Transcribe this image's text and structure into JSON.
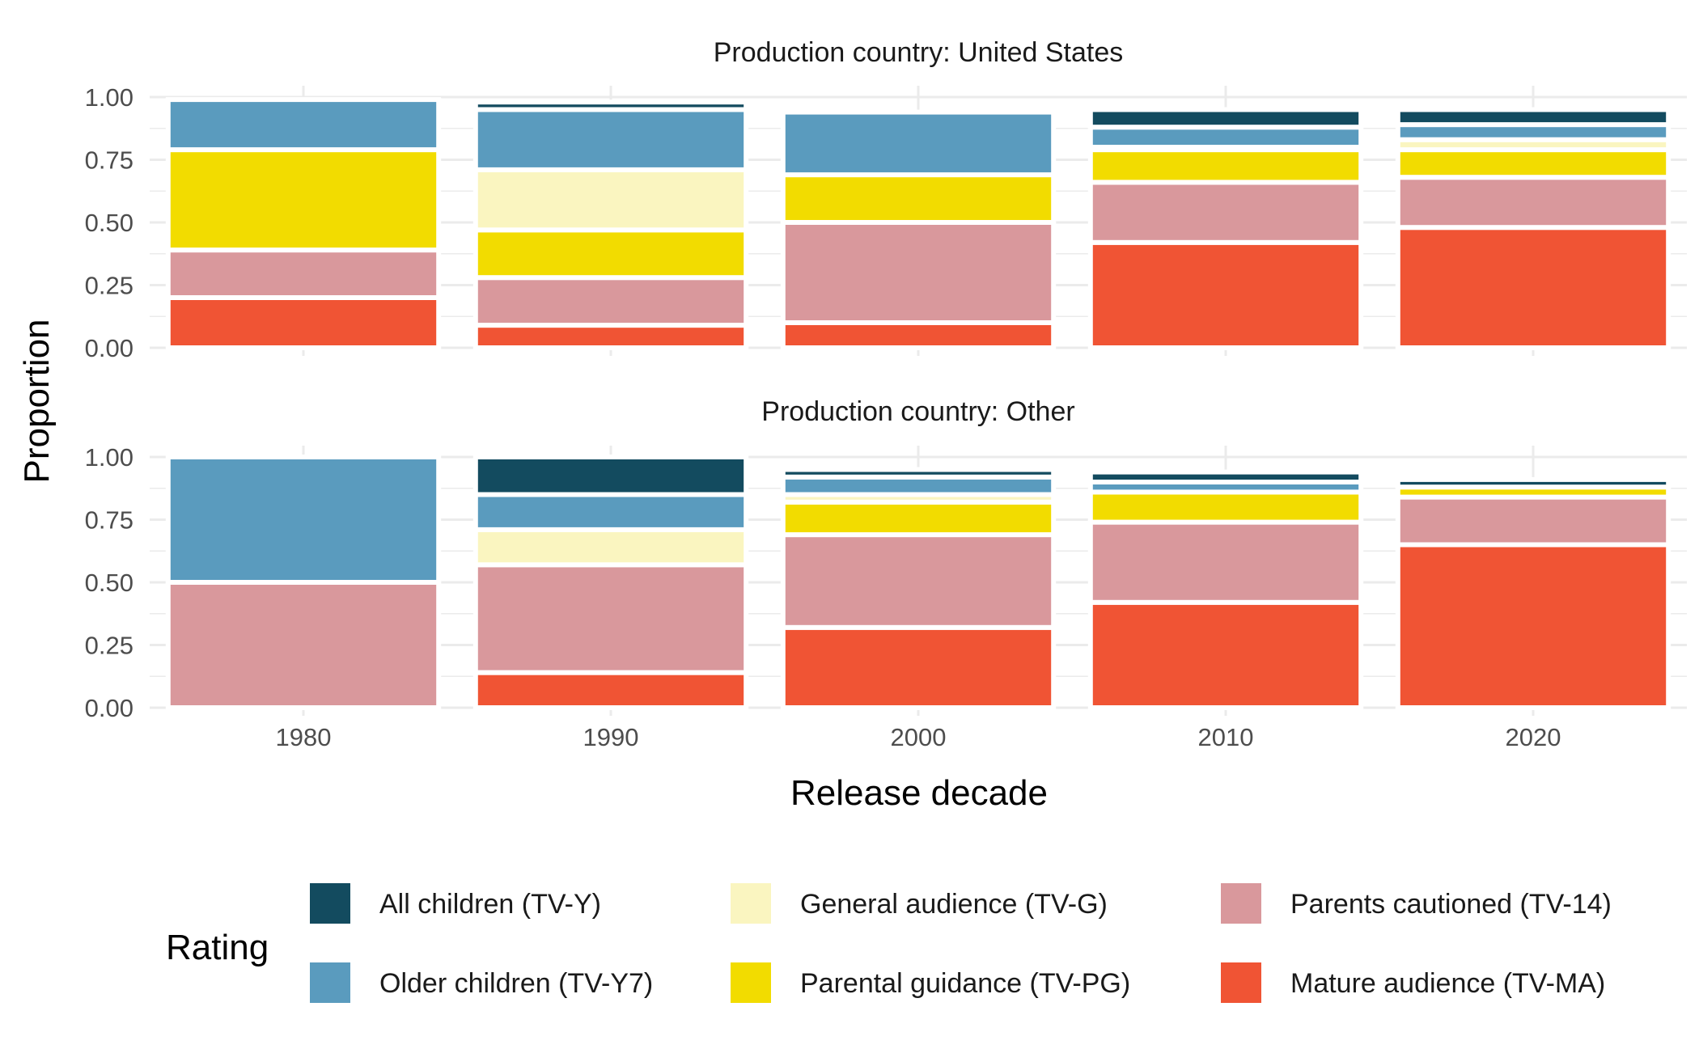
{
  "chart_data": {
    "type": "bar",
    "stacked": true,
    "xlabel": "Release decade",
    "ylabel": "Proportion",
    "ylim": [
      0,
      1
    ],
    "yticks": [
      "0.00",
      "0.25",
      "0.50",
      "0.75",
      "1.00"
    ],
    "categories": [
      "1980",
      "1990",
      "2000",
      "2010",
      "2020"
    ],
    "grid": true,
    "legend_title": "Rating",
    "legend_position": "bottom",
    "legend_order": [
      "TV-Y",
      "TV-Y7",
      "TV-G",
      "TV-PG",
      "TV-14",
      "TV-MA"
    ],
    "ratings": [
      {
        "key": "TV-Y",
        "label": "All children (TV-Y)",
        "color": "#134B5F"
      },
      {
        "key": "TV-Y7",
        "label": "Older children (TV-Y7)",
        "color": "#5A9BBE"
      },
      {
        "key": "TV-G",
        "label": "General audience (TV-G)",
        "color": "#FAF5C0"
      },
      {
        "key": "TV-PG",
        "label": "Parental guidance (TV-PG)",
        "color": "#F2DC00"
      },
      {
        "key": "TV-14",
        "label": "Parents cautioned (TV-14)",
        "color": "#D9989C"
      },
      {
        "key": "TV-MA",
        "label": "Mature audience (TV-MA)",
        "color": "#F05434"
      }
    ],
    "panels": [
      {
        "title": "Production country: United States",
        "series": [
          {
            "rating": "TV-MA",
            "values": [
              0.2,
              0.09,
              0.1,
              0.42,
              0.48
            ]
          },
          {
            "rating": "TV-14",
            "values": [
              0.19,
              0.19,
              0.4,
              0.24,
              0.2
            ]
          },
          {
            "rating": "TV-PG",
            "values": [
              0.4,
              0.19,
              0.19,
              0.13,
              0.11
            ]
          },
          {
            "rating": "TV-G",
            "values": [
              0.0,
              0.24,
              0.0,
              0.01,
              0.04
            ]
          },
          {
            "rating": "TV-Y7",
            "values": [
              0.2,
              0.24,
              0.25,
              0.08,
              0.06
            ]
          },
          {
            "rating": "TV-Y",
            "values": [
              0.0,
              0.03,
              0.0,
              0.07,
              0.06
            ]
          }
        ]
      },
      {
        "title": "Production country: Other",
        "series": [
          {
            "rating": "TV-MA",
            "values": [
              0.0,
              0.14,
              0.32,
              0.42,
              0.65
            ]
          },
          {
            "rating": "TV-14",
            "values": [
              0.5,
              0.43,
              0.37,
              0.32,
              0.19
            ]
          },
          {
            "rating": "TV-PG",
            "values": [
              0.0,
              0.0,
              0.13,
              0.12,
              0.04
            ]
          },
          {
            "rating": "TV-G",
            "values": [
              0.0,
              0.14,
              0.03,
              0.0,
              0.0
            ]
          },
          {
            "rating": "TV-Y7",
            "values": [
              0.5,
              0.14,
              0.07,
              0.04,
              0.0
            ]
          },
          {
            "rating": "TV-Y",
            "values": [
              0.0,
              0.15,
              0.03,
              0.04,
              0.03
            ]
          }
        ]
      }
    ]
  }
}
